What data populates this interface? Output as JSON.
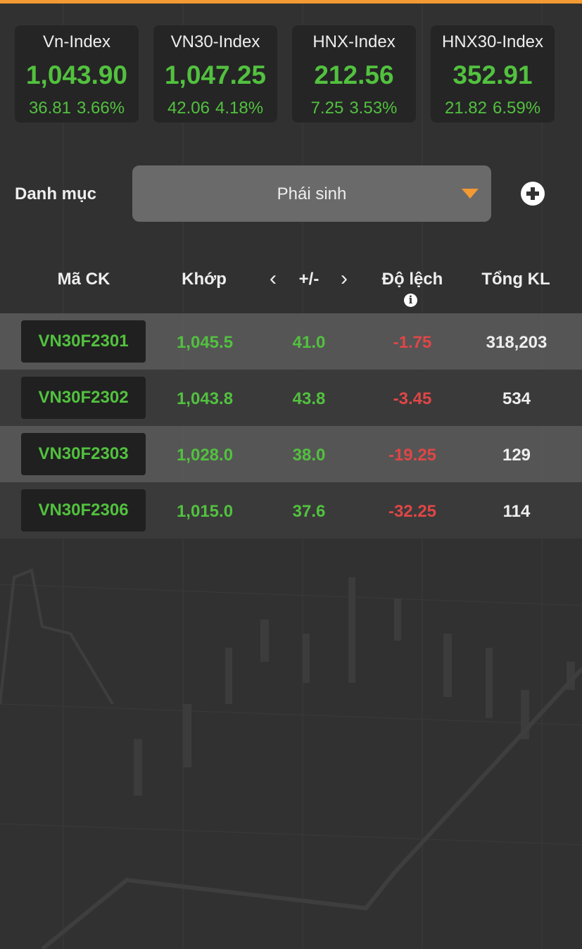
{
  "indices": [
    {
      "name": "Vn-Index",
      "value": "1,043.90",
      "change": "36.81",
      "percent": "3.66%"
    },
    {
      "name": "VN30-Index",
      "value": "1,047.25",
      "change": "42.06",
      "percent": "4.18%"
    },
    {
      "name": "HNX-Index",
      "value": "212.56",
      "change": "7.25",
      "percent": "3.53%"
    },
    {
      "name": "HNX30-Index",
      "value": "352.91",
      "change": "21.82",
      "percent": "6.59%"
    }
  ],
  "category": {
    "label": "Danh mục",
    "selected": "Phái sinh",
    "dropdown_icon": "caret-down",
    "add_icon": "plus-circle"
  },
  "table": {
    "headers": {
      "code": "Mã CK",
      "match": "Khớp",
      "prev": "‹",
      "change": "+/-",
      "next": "›",
      "deviation": "Độ lệch",
      "info": "i",
      "volume": "Tổng KL"
    },
    "rows": [
      {
        "code": "VN30F2301",
        "match": "1,045.5",
        "change": "41.0",
        "deviation": "-1.75",
        "volume": "318,203"
      },
      {
        "code": "VN30F2302",
        "match": "1,043.8",
        "change": "43.8",
        "deviation": "-3.45",
        "volume": "534"
      },
      {
        "code": "VN30F2303",
        "match": "1,028.0",
        "change": "38.0",
        "deviation": "-19.25",
        "volume": "129"
      },
      {
        "code": "VN30F2306",
        "match": "1,015.0",
        "change": "37.6",
        "deviation": "-32.25",
        "volume": "114"
      }
    ]
  },
  "colors": {
    "accent": "#f39a33",
    "up": "#52c13f",
    "down": "#e04646",
    "background": "#313131"
  }
}
